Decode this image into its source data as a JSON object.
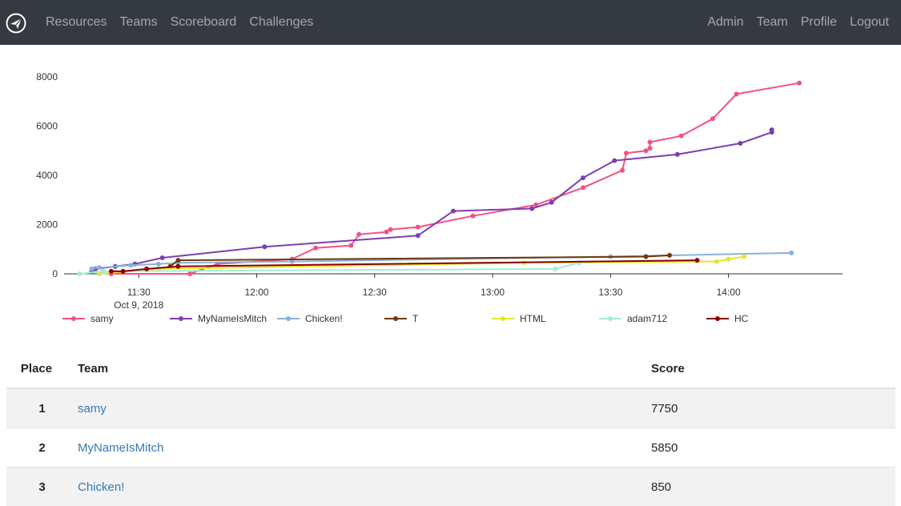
{
  "nav": {
    "logo_icon": "paper-plane-icon",
    "left": [
      "Resources",
      "Teams",
      "Scoreboard",
      "Challenges"
    ],
    "right": [
      "Admin",
      "Team",
      "Profile",
      "Logout"
    ]
  },
  "chart_data": {
    "type": "line",
    "ylim": [
      0,
      8000
    ],
    "yticks": [
      0,
      2000,
      4000,
      6000,
      8000
    ],
    "xlim": [
      "11:11",
      "14:29"
    ],
    "xticks": [
      "11:30",
      "12:00",
      "12:30",
      "13:00",
      "13:30",
      "14:00"
    ],
    "x_date_label": "Oct 9, 2018",
    "legend_position": "bottom",
    "series": [
      {
        "name": "samy",
        "color": "#f2508a",
        "points": [
          [
            "11:23",
            0
          ],
          [
            "11:43",
            0
          ],
          [
            "11:50",
            400
          ],
          [
            "12:09",
            600
          ],
          [
            "12:15",
            1050
          ],
          [
            "12:24",
            1150
          ],
          [
            "12:26",
            1600
          ],
          [
            "12:33",
            1700
          ],
          [
            "12:34",
            1800
          ],
          [
            "12:41",
            1900
          ],
          [
            "12:55",
            2350
          ],
          [
            "13:11",
            2800
          ],
          [
            "13:23",
            3500
          ],
          [
            "13:33",
            4200
          ],
          [
            "13:34",
            4900
          ],
          [
            "13:39",
            5000
          ],
          [
            "13:40",
            5100
          ],
          [
            "13:40",
            5350
          ],
          [
            "13:48",
            5600
          ],
          [
            "13:56",
            6300
          ],
          [
            "14:02",
            7300
          ],
          [
            "14:18",
            7750
          ]
        ]
      },
      {
        "name": "MyNameIsMitch",
        "color": "#7b3fb3",
        "points": [
          [
            "11:18",
            100
          ],
          [
            "11:19",
            200
          ],
          [
            "11:24",
            300
          ],
          [
            "11:29",
            400
          ],
          [
            "11:36",
            650
          ],
          [
            "12:02",
            1100
          ],
          [
            "12:41",
            1550
          ],
          [
            "12:50",
            2550
          ],
          [
            "13:10",
            2650
          ],
          [
            "13:15",
            2900
          ],
          [
            "13:23",
            3900
          ],
          [
            "13:31",
            4600
          ],
          [
            "13:47",
            4850
          ],
          [
            "14:03",
            5300
          ],
          [
            "14:11",
            5750
          ],
          [
            "14:11",
            5850
          ]
        ]
      },
      {
        "name": "Chicken!",
        "color": "#8cb1d9",
        "points": [
          [
            "11:18",
            200
          ],
          [
            "11:20",
            250
          ],
          [
            "11:28",
            350
          ],
          [
            "11:35",
            400
          ],
          [
            "11:40",
            450
          ],
          [
            "12:09",
            500
          ],
          [
            "13:30",
            700
          ],
          [
            "14:16",
            850
          ]
        ]
      },
      {
        "name": "T",
        "color": "#6b3a0e",
        "points": [
          [
            "11:38",
            300
          ],
          [
            "11:40",
            550
          ],
          [
            "13:39",
            700
          ],
          [
            "13:45",
            750
          ]
        ]
      },
      {
        "name": "HTML",
        "color": "#e6e62a",
        "points": [
          [
            "11:20",
            0
          ],
          [
            "11:35",
            200
          ],
          [
            "13:08",
            450
          ],
          [
            "13:57",
            500
          ],
          [
            "14:00",
            600
          ],
          [
            "14:04",
            700
          ]
        ]
      },
      {
        "name": "adam712",
        "color": "#a5ecd8",
        "points": [
          [
            "11:15",
            0
          ],
          [
            "11:21",
            100
          ],
          [
            "13:16",
            200
          ],
          [
            "13:22",
            450
          ]
        ]
      },
      {
        "name": "HC",
        "color": "#8b0000",
        "points": [
          [
            "11:23",
            100
          ],
          [
            "11:26",
            100
          ],
          [
            "11:32",
            200
          ],
          [
            "11:40",
            300
          ],
          [
            "13:52",
            550
          ]
        ]
      }
    ]
  },
  "scoreboard": {
    "headers": {
      "place": "Place",
      "team": "Team",
      "score": "Score"
    },
    "rows": [
      {
        "place": "1",
        "team": "samy",
        "score": "7750"
      },
      {
        "place": "2",
        "team": "MyNameIsMitch",
        "score": "5850"
      },
      {
        "place": "3",
        "team": "Chicken!",
        "score": "850"
      }
    ]
  }
}
